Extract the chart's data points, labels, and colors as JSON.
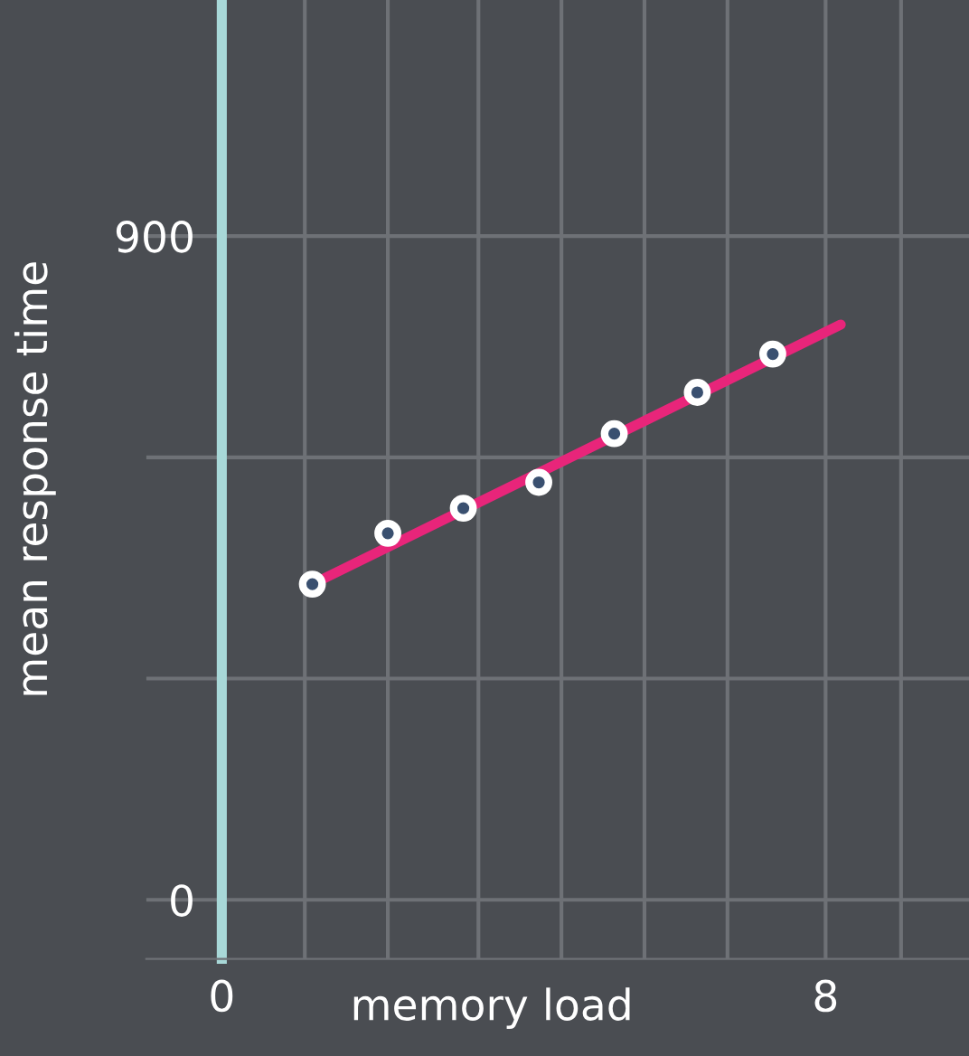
{
  "chart_data": {
    "type": "scatter",
    "xlabel": "memory load",
    "ylabel": "mean response time",
    "series": [
      {
        "marker": "circle",
        "color": "#ffffff",
        "x": [
          1.2,
          2.2,
          3.2,
          4.2,
          5.2,
          6.3,
          7.3
        ],
        "values": [
          428,
          497,
          531,
          566,
          632,
          688,
          740
        ]
      },
      {
        "type": "line",
        "marker": "none",
        "color": "#e8257a",
        "x": [
          1.2,
          8.2
        ],
        "values": [
          428,
          780
        ]
      }
    ],
    "xlim": [
      -1,
      9.9
    ],
    "ylim": [
      -80,
      1220
    ],
    "xticks": [
      0,
      {
        "value": 1.1,
        "label": null
      },
      {
        "value": 2.2,
        "label": null
      },
      {
        "value": 3.4,
        "label": null
      },
      {
        "value": 4.5,
        "label": null
      },
      {
        "value": 5.6,
        "label": null
      },
      {
        "value": 6.7,
        "label": null
      },
      8,
      {
        "value": 9,
        "label": null
      }
    ],
    "yticks": [
      0,
      {
        "value": 300,
        "label": null
      },
      {
        "value": 600,
        "label": null
      },
      900
    ],
    "grid": true,
    "line_style": "solid"
  }
}
